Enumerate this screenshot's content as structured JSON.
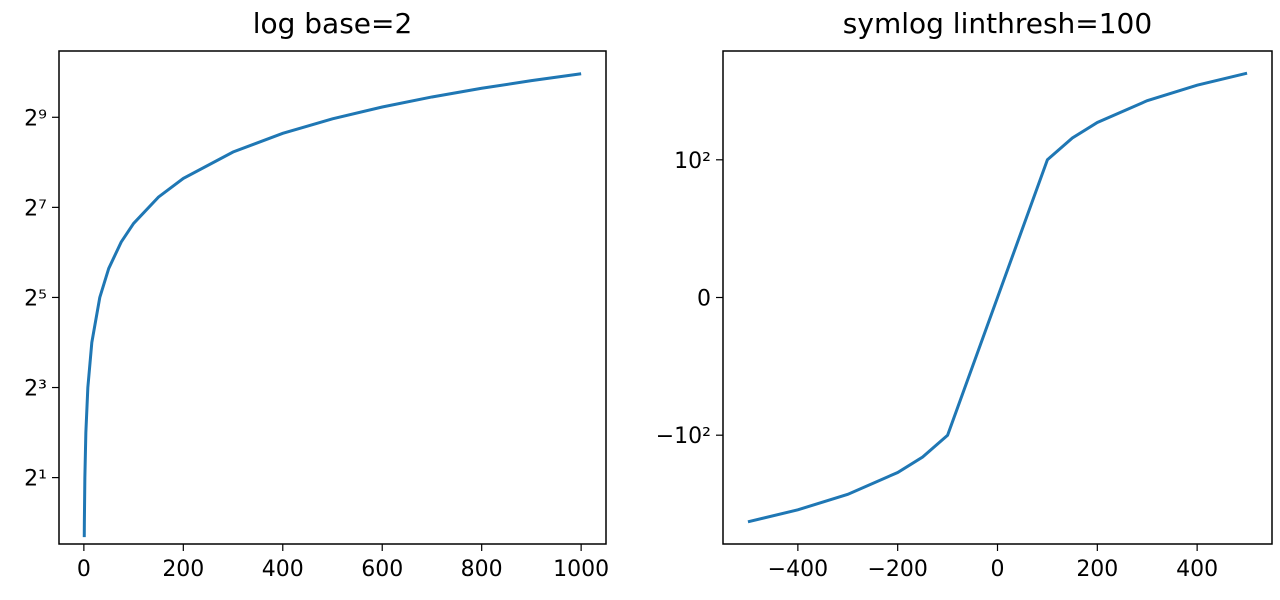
{
  "chart_data": [
    {
      "type": "line",
      "title": "log base=2",
      "yscale": "log",
      "base": 2,
      "x": [
        0.8,
        1,
        2,
        4,
        8,
        16,
        32,
        50,
        75,
        100,
        150,
        200,
        300,
        400,
        500,
        600,
        700,
        800,
        900,
        1000
      ],
      "series": [
        {
          "color": "#1f77b4",
          "values": [
            0.8,
            1,
            2,
            4,
            8,
            16,
            32,
            50,
            75,
            100,
            150,
            200,
            300,
            400,
            500,
            600,
            700,
            800,
            900,
            1000
          ]
        }
      ],
      "xlim": [
        -50,
        1050
      ],
      "xticks": [
        0,
        200,
        400,
        600,
        800,
        1000
      ],
      "ylim": [
        0.72,
        1420
      ],
      "yticks": [
        {
          "value": 2,
          "label": "2¹"
        },
        {
          "value": 8,
          "label": "2³"
        },
        {
          "value": 32,
          "label": "2⁵"
        },
        {
          "value": 128,
          "label": "2⁷"
        },
        {
          "value": 512,
          "label": "2⁹"
        }
      ]
    },
    {
      "type": "line",
      "title": "symlog linthresh=100",
      "yscale": "symlog",
      "linthresh": 100,
      "x": [
        -500,
        -400,
        -300,
        -200,
        -150,
        -100,
        -50,
        0,
        50,
        100,
        150,
        200,
        300,
        400,
        500
      ],
      "series": [
        {
          "color": "#1f77b4",
          "values": [
            -500,
            -400,
            -300,
            -200,
            -150,
            -100,
            -50,
            0,
            50,
            100,
            150,
            200,
            300,
            400,
            500
          ]
        }
      ],
      "xlim": [
        -550,
        550
      ],
      "xticks": [
        {
          "value": -400,
          "label": "−400"
        },
        {
          "value": -200,
          "label": "−200"
        },
        0,
        200,
        400
      ],
      "ylim": [
        -755,
        755
      ],
      "yticks": [
        {
          "value": -100,
          "label": "−10²"
        },
        0,
        {
          "value": 100,
          "label": "10²"
        }
      ]
    }
  ]
}
